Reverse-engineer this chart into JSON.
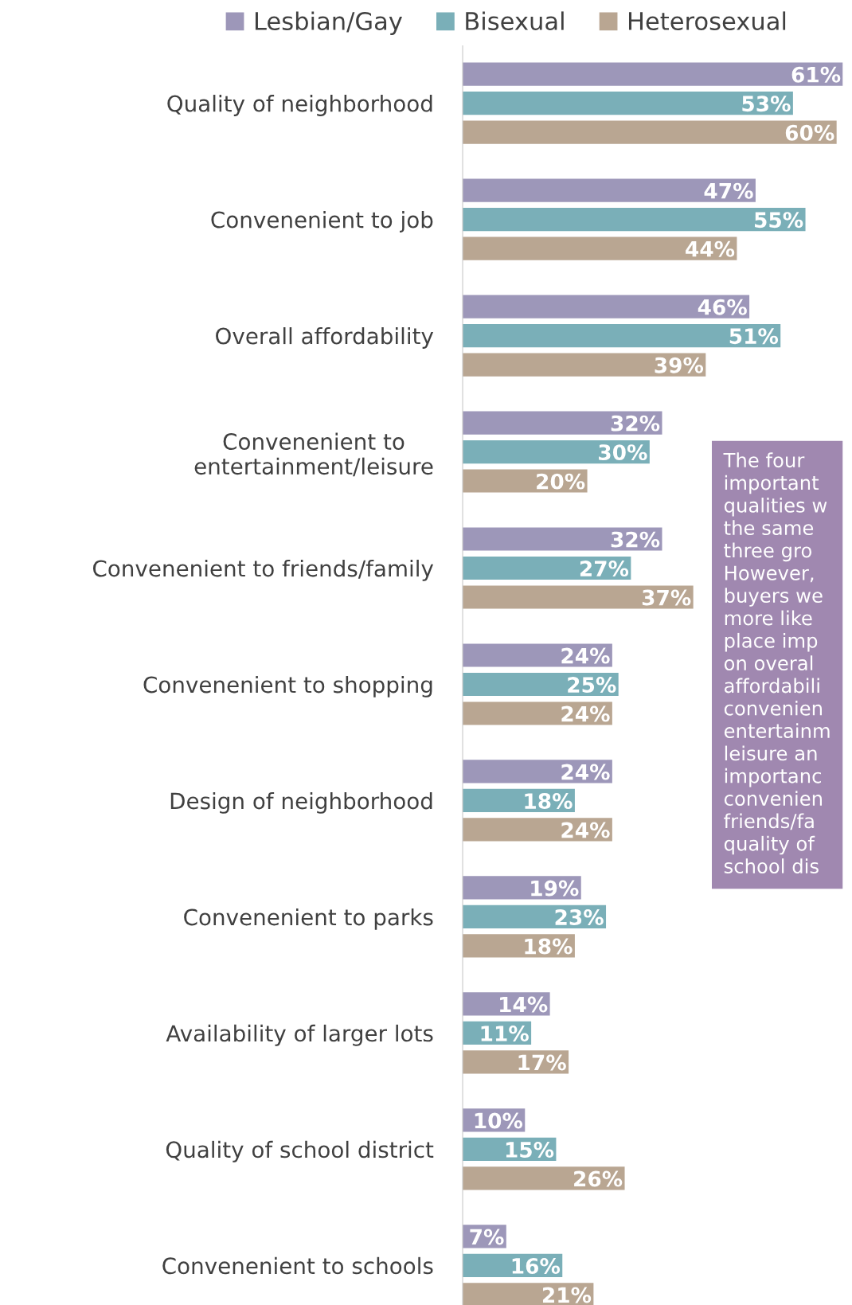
{
  "chart_data": {
    "type": "bar",
    "orientation": "horizontal",
    "categories": [
      "Quality of neighborhood",
      "Convenenient to job",
      "Overall affordability",
      "Convenenient to\nentertainment/leisure",
      "Convenenient to friends/family",
      "Convenenient to shopping",
      "Design of neighborhood",
      "Convenenient to parks",
      "Availability of larger lots",
      "Quality of school district",
      "Convenenient to schools"
    ],
    "series": [
      {
        "name": "Lesbian/Gay",
        "color": "#9d97b9",
        "values": [
          61,
          47,
          46,
          32,
          32,
          24,
          24,
          19,
          14,
          10,
          7
        ],
        "value_labels": [
          "61%",
          "47%",
          "46%",
          "32%",
          "32%",
          "24%",
          "24%",
          "19%",
          "14%",
          "10%",
          "7%"
        ]
      },
      {
        "name": "Bisexual",
        "color": "#7aafb8",
        "values": [
          53,
          55,
          51,
          30,
          27,
          25,
          18,
          23,
          11,
          15,
          16
        ],
        "value_labels": [
          "53%",
          "55%",
          "51%",
          "30%",
          "27%",
          "25%",
          "18%",
          "23%",
          "11%",
          "15%",
          "16%"
        ]
      },
      {
        "name": "Heterosexual",
        "color": "#b9a692",
        "values": [
          60,
          44,
          39,
          20,
          37,
          24,
          24,
          18,
          17,
          26,
          21
        ],
        "value_labels": [
          "60%",
          "44%",
          "39%",
          "20%",
          "37%",
          "24%",
          "24%",
          "18%",
          "17%",
          "26%",
          "21%"
        ]
      }
    ],
    "tick_labels": "y",
    "legend": "top",
    "annotations": [
      "The four\nimportant\nqualities w\nthe same\nthree gro\nHowever,\nbuyers we\nmore like\nplace imp\non overal\naffordabili\nconvenien\nentertainm\nleisure an\nimportanc\nconvenien\nfriends/fa\nquality of\nschool dis"
    ]
  }
}
